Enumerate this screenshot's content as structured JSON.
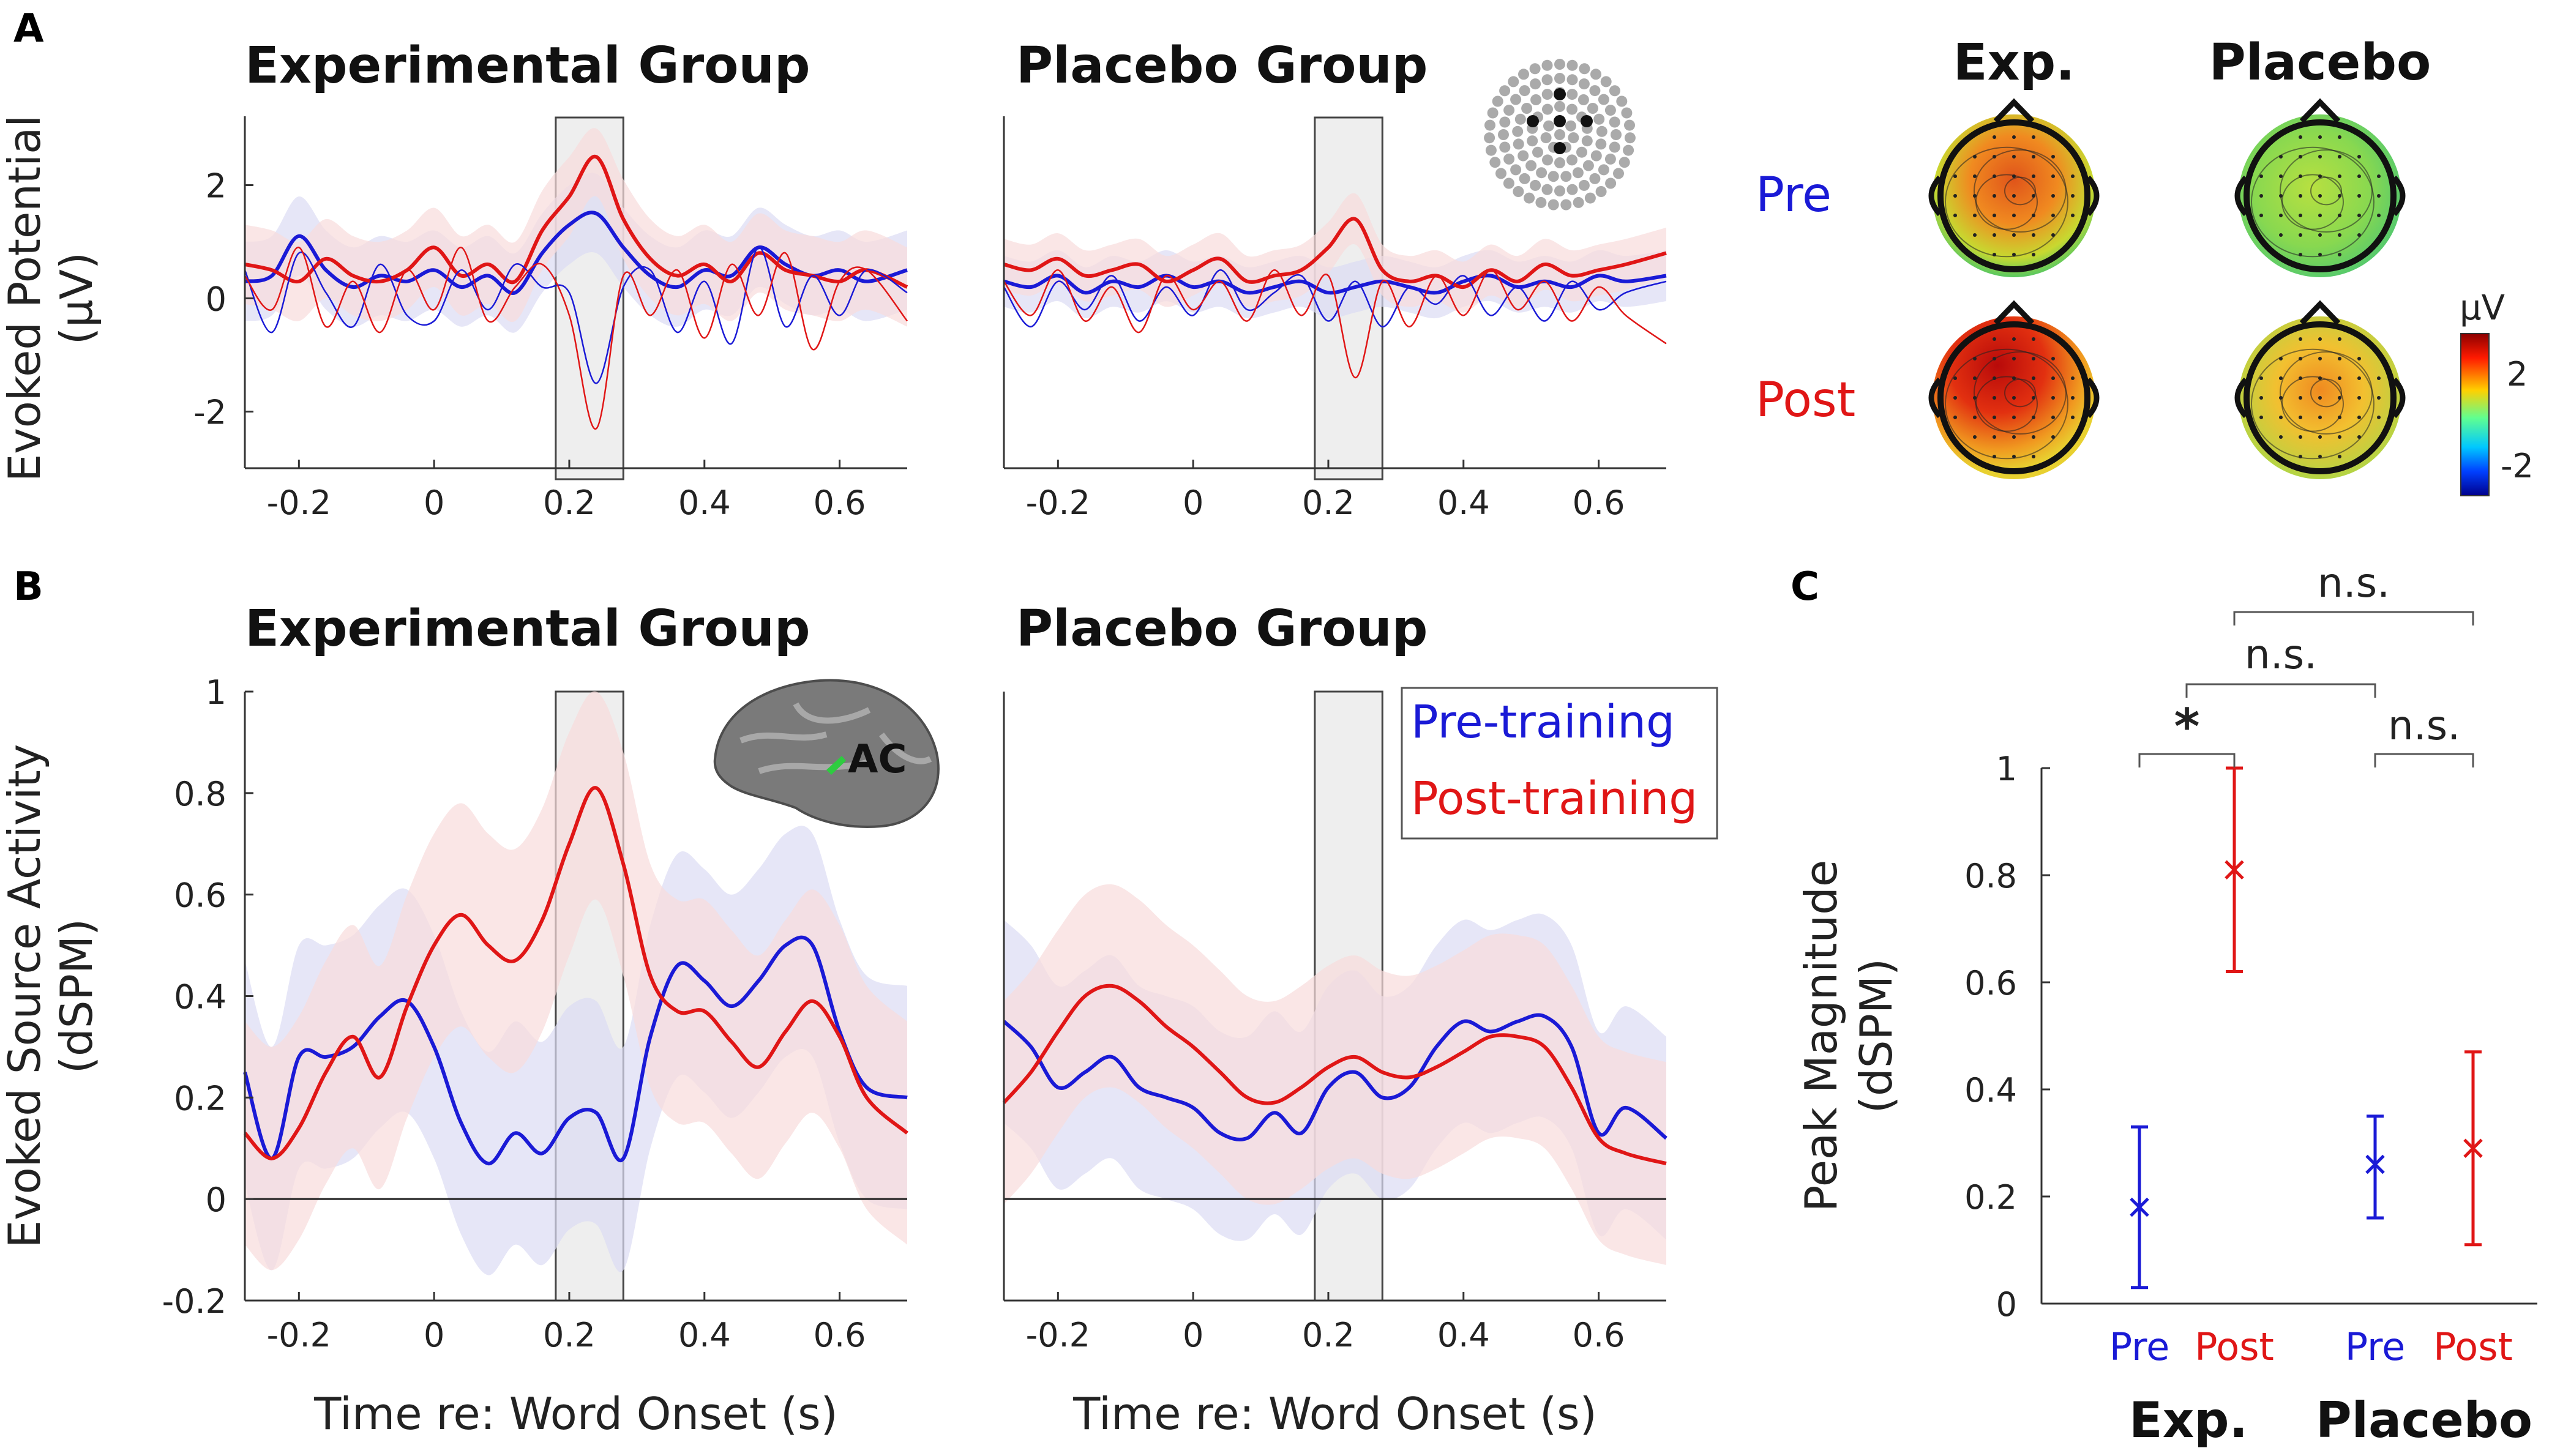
{
  "panels": {
    "a": "A",
    "b": "B",
    "c": "C"
  },
  "colors": {
    "pre": "#1a1ad6",
    "post": "#e01616",
    "window": "#eeeeee",
    "pre_band": "#dcdcf4",
    "post_band": "#f8dcdc"
  },
  "icons": {
    "electrode_map": "electrode-layout-icon",
    "brain": "brain-cortex-icon"
  },
  "topo": {
    "col_labels": [
      "Exp.",
      "Placebo"
    ],
    "row_labels": [
      "Pre",
      "Post"
    ],
    "colorbar": {
      "unit": "μV",
      "ticks": [
        "2",
        "-2"
      ]
    }
  },
  "brain_label": "AC",
  "legend": [
    "Pre-training",
    "Post-training"
  ],
  "chart_data": [
    {
      "id": "A-exp",
      "type": "line",
      "title": "Experimental Group",
      "ylabel": [
        "Evoked Potential",
        "(μV)"
      ],
      "xlabel": "",
      "xlim": [
        -0.28,
        0.7
      ],
      "ylim": [
        -3,
        3
      ],
      "analysis_window": [
        0.18,
        0.28
      ],
      "xticks": [
        -0.2,
        0,
        0.2,
        0.4,
        0.6
      ],
      "yticks": [
        -2,
        0,
        2
      ],
      "band_halfwidth": 0.7,
      "series": [
        {
          "name": "Pre (thick)",
          "color_key": "pre",
          "width": 6,
          "band": true,
          "x": [
            -0.28,
            -0.24,
            -0.2,
            -0.16,
            -0.12,
            -0.08,
            -0.04,
            0,
            0.04,
            0.08,
            0.12,
            0.16,
            0.2,
            0.24,
            0.28,
            0.32,
            0.36,
            0.4,
            0.44,
            0.48,
            0.52,
            0.56,
            0.6,
            0.64,
            0.7
          ],
          "y": [
            0.3,
            0.4,
            1.1,
            0.5,
            0.2,
            0.4,
            0.3,
            0.5,
            0.2,
            0.4,
            0.1,
            0.8,
            1.3,
            1.5,
            0.9,
            0.4,
            0.2,
            0.5,
            0.4,
            0.9,
            0.6,
            0.4,
            0.5,
            0.3,
            0.5
          ]
        },
        {
          "name": "Post (thick)",
          "color_key": "post",
          "width": 6,
          "band": true,
          "x": [
            -0.28,
            -0.24,
            -0.2,
            -0.16,
            -0.12,
            -0.08,
            -0.04,
            0,
            0.04,
            0.08,
            0.12,
            0.16,
            0.2,
            0.24,
            0.28,
            0.32,
            0.36,
            0.4,
            0.44,
            0.48,
            0.52,
            0.56,
            0.6,
            0.64,
            0.7
          ],
          "y": [
            0.6,
            0.5,
            0.3,
            0.7,
            0.4,
            0.3,
            0.5,
            0.9,
            0.4,
            0.6,
            0.3,
            1.2,
            1.8,
            2.5,
            1.4,
            0.7,
            0.4,
            0.6,
            0.3,
            0.8,
            0.5,
            0.4,
            0.3,
            0.5,
            0.2
          ]
        },
        {
          "name": "Pre (thin)",
          "color_key": "pre",
          "width": 2.5,
          "band": false,
          "x": [
            -0.28,
            -0.24,
            -0.2,
            -0.16,
            -0.12,
            -0.08,
            -0.04,
            0,
            0.04,
            0.08,
            0.12,
            0.16,
            0.2,
            0.24,
            0.28,
            0.32,
            0.36,
            0.4,
            0.44,
            0.48,
            0.52,
            0.56,
            0.6,
            0.64,
            0.7
          ],
          "y": [
            0.5,
            -0.6,
            0.8,
            0.1,
            -0.5,
            0.6,
            -0.3,
            -0.4,
            0.5,
            -0.2,
            0.6,
            0.2,
            0.1,
            -1.5,
            0.2,
            0.5,
            -0.6,
            0.3,
            -0.8,
            0.9,
            -0.5,
            0.4,
            -0.3,
            0.5,
            0.1
          ]
        },
        {
          "name": "Post (thin)",
          "color_key": "post",
          "width": 2.5,
          "band": false,
          "x": [
            -0.28,
            -0.24,
            -0.2,
            -0.16,
            -0.12,
            -0.08,
            -0.04,
            0,
            0.04,
            0.08,
            0.12,
            0.16,
            0.2,
            0.24,
            0.28,
            0.32,
            0.36,
            0.4,
            0.44,
            0.48,
            0.52,
            0.56,
            0.6,
            0.64,
            0.7
          ],
          "y": [
            0.4,
            -0.2,
            0.9,
            -0.5,
            0.3,
            -0.6,
            0.5,
            -0.2,
            0.9,
            -0.4,
            0.2,
            0.6,
            -0.3,
            -2.3,
            0.4,
            -0.3,
            0.5,
            -0.7,
            0.6,
            -0.3,
            0.8,
            -0.9,
            0.3,
            0.5,
            -0.4
          ]
        }
      ]
    },
    {
      "id": "A-placebo",
      "type": "line",
      "title": "Placebo Group",
      "ylabel": [],
      "xlabel": "",
      "xlim": [
        -0.28,
        0.7
      ],
      "ylim": [
        -3,
        3
      ],
      "analysis_window": [
        0.18,
        0.28
      ],
      "xticks": [
        -0.2,
        0,
        0.2,
        0.4,
        0.6
      ],
      "yticks": [],
      "band_halfwidth": 0.45,
      "series": [
        {
          "name": "Pre (thick)",
          "color_key": "pre",
          "width": 6,
          "band": true,
          "x": [
            -0.28,
            -0.24,
            -0.2,
            -0.16,
            -0.12,
            -0.08,
            -0.04,
            0,
            0.04,
            0.08,
            0.12,
            0.16,
            0.2,
            0.24,
            0.28,
            0.32,
            0.36,
            0.4,
            0.44,
            0.48,
            0.52,
            0.56,
            0.6,
            0.64,
            0.7
          ],
          "y": [
            0.3,
            0.2,
            0.4,
            0.1,
            0.3,
            0.2,
            0.4,
            0.2,
            0.3,
            0.1,
            0.2,
            0.3,
            0.1,
            0.2,
            0.3,
            0.2,
            0.1,
            0.3,
            0.4,
            0.2,
            0.3,
            0.2,
            0.4,
            0.3,
            0.4
          ]
        },
        {
          "name": "Post (thick)",
          "color_key": "post",
          "width": 6,
          "band": true,
          "x": [
            -0.28,
            -0.24,
            -0.2,
            -0.16,
            -0.12,
            -0.08,
            -0.04,
            0,
            0.04,
            0.08,
            0.12,
            0.16,
            0.2,
            0.24,
            0.28,
            0.32,
            0.36,
            0.4,
            0.44,
            0.48,
            0.52,
            0.56,
            0.6,
            0.64,
            0.7
          ],
          "y": [
            0.6,
            0.5,
            0.7,
            0.4,
            0.5,
            0.6,
            0.3,
            0.5,
            0.7,
            0.3,
            0.4,
            0.5,
            0.9,
            1.4,
            0.5,
            0.3,
            0.4,
            0.2,
            0.5,
            0.3,
            0.6,
            0.4,
            0.5,
            0.6,
            0.8
          ]
        },
        {
          "name": "Pre (thin)",
          "color_key": "pre",
          "width": 2.5,
          "band": false,
          "x": [
            -0.28,
            -0.24,
            -0.2,
            -0.16,
            -0.12,
            -0.08,
            -0.04,
            0,
            0.04,
            0.08,
            0.12,
            0.16,
            0.2,
            0.24,
            0.28,
            0.32,
            0.36,
            0.4,
            0.44,
            0.48,
            0.52,
            0.56,
            0.6,
            0.64,
            0.7
          ],
          "y": [
            0.2,
            -0.5,
            0.3,
            -0.2,
            0.4,
            -0.4,
            0.2,
            -0.3,
            0.5,
            -0.2,
            0.1,
            0.4,
            -0.4,
            0.3,
            -0.5,
            0.2,
            -0.1,
            0.4,
            -0.3,
            0.2,
            -0.4,
            0.3,
            -0.2,
            0.1,
            0.3
          ]
        },
        {
          "name": "Post (thin)",
          "color_key": "post",
          "width": 2.5,
          "band": false,
          "x": [
            -0.28,
            -0.24,
            -0.2,
            -0.16,
            -0.12,
            -0.08,
            -0.04,
            0,
            0.04,
            0.08,
            0.12,
            0.16,
            0.2,
            0.24,
            0.28,
            0.32,
            0.36,
            0.4,
            0.44,
            0.48,
            0.52,
            0.56,
            0.6,
            0.64,
            0.7
          ],
          "y": [
            0.3,
            -0.3,
            0.5,
            -0.4,
            0.2,
            -0.6,
            0.4,
            -0.2,
            0.3,
            -0.4,
            0.5,
            -0.3,
            0.4,
            -1.4,
            0.3,
            -0.5,
            0.4,
            -0.3,
            0.5,
            -0.2,
            0.3,
            -0.4,
            0.2,
            -0.3,
            -0.8
          ]
        }
      ]
    },
    {
      "id": "B-exp",
      "type": "line",
      "title": "Experimental Group",
      "ylabel": [
        "Evoked Source Activity",
        "(dSPM)"
      ],
      "xlabel": "Time re: Word Onset (s)",
      "xlim": [
        -0.28,
        0.7
      ],
      "ylim": [
        -0.2,
        1.0
      ],
      "analysis_window": [
        0.18,
        0.28
      ],
      "xticks": [
        -0.2,
        0,
        0.2,
        0.4,
        0.6
      ],
      "yticks": [
        -0.2,
        0,
        0.2,
        0.4,
        0.6,
        0.8,
        1
      ],
      "band_halfwidth": 0.22,
      "series": [
        {
          "name": "Pre-training",
          "color_key": "pre",
          "width": 6,
          "band": true,
          "x": [
            -0.28,
            -0.24,
            -0.2,
            -0.16,
            -0.12,
            -0.08,
            -0.04,
            0,
            0.04,
            0.08,
            0.12,
            0.16,
            0.2,
            0.24,
            0.28,
            0.32,
            0.36,
            0.4,
            0.44,
            0.48,
            0.52,
            0.56,
            0.6,
            0.64,
            0.7
          ],
          "y": [
            0.25,
            0.08,
            0.28,
            0.28,
            0.3,
            0.36,
            0.39,
            0.3,
            0.15,
            0.07,
            0.13,
            0.09,
            0.16,
            0.17,
            0.08,
            0.32,
            0.46,
            0.43,
            0.38,
            0.43,
            0.5,
            0.5,
            0.33,
            0.22,
            0.2
          ]
        },
        {
          "name": "Post-training",
          "color_key": "post",
          "width": 6,
          "band": true,
          "x": [
            -0.28,
            -0.24,
            -0.2,
            -0.16,
            -0.12,
            -0.08,
            -0.04,
            0,
            0.04,
            0.08,
            0.12,
            0.16,
            0.2,
            0.24,
            0.28,
            0.32,
            0.36,
            0.4,
            0.44,
            0.48,
            0.52,
            0.56,
            0.6,
            0.64,
            0.7
          ],
          "y": [
            0.13,
            0.08,
            0.14,
            0.25,
            0.32,
            0.24,
            0.38,
            0.5,
            0.56,
            0.5,
            0.47,
            0.55,
            0.7,
            0.81,
            0.66,
            0.44,
            0.37,
            0.37,
            0.31,
            0.26,
            0.33,
            0.39,
            0.32,
            0.2,
            0.13
          ]
        }
      ]
    },
    {
      "id": "B-placebo",
      "type": "line",
      "title": "Placebo Group",
      "ylabel": [],
      "xlabel": "Time re: Word Onset (s)",
      "xlim": [
        -0.28,
        0.7
      ],
      "ylim": [
        -0.2,
        1.0
      ],
      "analysis_window": [
        0.18,
        0.28
      ],
      "xticks": [
        -0.2,
        0,
        0.2,
        0.4,
        0.6
      ],
      "yticks": [],
      "band_halfwidth": 0.2,
      "series": [
        {
          "name": "Pre-training",
          "color_key": "pre",
          "width": 6,
          "band": true,
          "x": [
            -0.28,
            -0.24,
            -0.2,
            -0.16,
            -0.12,
            -0.08,
            -0.04,
            0,
            0.04,
            0.08,
            0.12,
            0.16,
            0.2,
            0.24,
            0.28,
            0.32,
            0.36,
            0.4,
            0.44,
            0.48,
            0.52,
            0.56,
            0.6,
            0.64,
            0.7
          ],
          "y": [
            0.35,
            0.3,
            0.22,
            0.25,
            0.28,
            0.22,
            0.2,
            0.18,
            0.13,
            0.12,
            0.17,
            0.13,
            0.22,
            0.25,
            0.2,
            0.22,
            0.3,
            0.35,
            0.33,
            0.35,
            0.36,
            0.3,
            0.13,
            0.18,
            0.12
          ]
        },
        {
          "name": "Post-training",
          "color_key": "post",
          "width": 6,
          "band": true,
          "x": [
            -0.28,
            -0.24,
            -0.2,
            -0.16,
            -0.12,
            -0.08,
            -0.04,
            0,
            0.04,
            0.08,
            0.12,
            0.16,
            0.2,
            0.24,
            0.28,
            0.32,
            0.36,
            0.4,
            0.44,
            0.48,
            0.52,
            0.56,
            0.6,
            0.64,
            0.7
          ],
          "y": [
            0.19,
            0.25,
            0.33,
            0.4,
            0.42,
            0.39,
            0.34,
            0.3,
            0.25,
            0.2,
            0.19,
            0.22,
            0.26,
            0.28,
            0.25,
            0.24,
            0.26,
            0.29,
            0.32,
            0.32,
            0.3,
            0.22,
            0.12,
            0.09,
            0.07
          ]
        }
      ]
    },
    {
      "id": "C",
      "type": "scatter",
      "title": "",
      "ylabel": [
        "Peak Magnitude",
        "(dSPM)"
      ],
      "xlabel": "",
      "ylim": [
        0,
        1
      ],
      "yticks": [
        0,
        0.2,
        0.4,
        0.6,
        0.8,
        1
      ],
      "categories": [
        "Pre",
        "Post",
        "Pre",
        "Post"
      ],
      "groups": [
        "Exp.",
        "Placebo"
      ],
      "points": [
        {
          "group": "Exp.",
          "condition": "Pre",
          "color_key": "pre",
          "mean": 0.18,
          "err_low": 0.03,
          "err_high": 0.33
        },
        {
          "group": "Exp.",
          "condition": "Post",
          "color_key": "post",
          "mean": 0.81,
          "err_low": 0.62,
          "err_high": 1.0
        },
        {
          "group": "Placebo",
          "condition": "Pre",
          "color_key": "pre",
          "mean": 0.26,
          "err_low": 0.16,
          "err_high": 0.35
        },
        {
          "group": "Placebo",
          "condition": "Post",
          "color_key": "post",
          "mean": 0.29,
          "err_low": 0.11,
          "err_high": 0.47
        }
      ],
      "significance": [
        {
          "label": "*",
          "from": "Exp. Pre",
          "to": "Exp. Post"
        },
        {
          "label": "n.s.",
          "from": "Placebo Pre",
          "to": "Placebo Post"
        },
        {
          "label": "n.s.",
          "from": "Exp. Pre-Post",
          "to": "Placebo Pre"
        },
        {
          "label": "n.s.",
          "from": "Exp. Post",
          "to": "Placebo Post"
        }
      ]
    }
  ]
}
